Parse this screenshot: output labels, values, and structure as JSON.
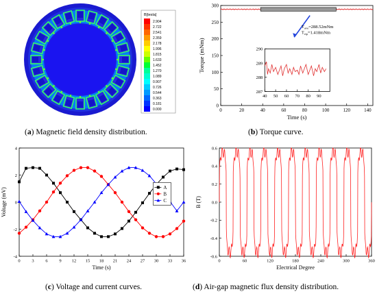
{
  "panels": {
    "a": {
      "letter": "a",
      "caption": "Magnetic field density distribution.",
      "colorbar": {
        "title": "B[tesla]",
        "values": [
          "2.904",
          "2.722",
          "2.541",
          "2.359",
          "2.178",
          "1.996",
          "1.815",
          "1.633",
          "1.452",
          "1.270",
          "1.089",
          "0.907",
          "0.726",
          "0.544",
          "0.363",
          "0.181",
          "0.000"
        ],
        "colors": [
          "#ff0000",
          "#ff3300",
          "#ff6600",
          "#ff9900",
          "#ffcc00",
          "#ffff00",
          "#ccff00",
          "#66ff00",
          "#00ff33",
          "#00ff99",
          "#00ffcc",
          "#00ffff",
          "#00ccff",
          "#0099ff",
          "#0066ff",
          "#0033ff",
          "#0000ff"
        ]
      }
    },
    "b": {
      "letter": "b",
      "caption": "Torque curve."
    },
    "c": {
      "letter": "c",
      "caption": "Voltage and current curves."
    },
    "d": {
      "letter": "d",
      "caption": "Air-gap magnetic flux density distribution."
    }
  },
  "chart_data": [
    {
      "id": "torque",
      "type": "line",
      "xlabel": "Time (s)",
      "ylabel": "Torque (mNm)",
      "xlim": [
        0,
        145
      ],
      "ylim": [
        0,
        300
      ],
      "xticks": [
        0,
        20,
        40,
        60,
        80,
        100,
        120,
        140
      ],
      "yticks": [
        0,
        50,
        100,
        150,
        200,
        250,
        300
      ],
      "color": "#e03030",
      "series": [
        {
          "x": [
            0,
            145
          ],
          "y": [
            288.52,
            288.52
          ]
        }
      ],
      "annotations": [
        "T",
        "ave",
        "=288.52mNm",
        "T",
        "rip",
        "=1.418mNm"
      ],
      "inset": {
        "xlim": [
          40,
          100
        ],
        "ylim": [
          287,
          290
        ],
        "xticks": [
          40,
          50,
          60,
          70,
          80,
          90
        ],
        "yticks": [
          287,
          288,
          289,
          290
        ],
        "x": [
          40,
          41.5,
          42.5,
          43.5,
          45,
          46.5,
          48,
          50,
          52,
          53.5,
          55,
          56.5,
          58,
          60,
          61.5,
          63,
          65,
          66.5,
          68,
          70,
          71.5,
          73,
          75,
          76.5,
          78,
          80,
          81.5,
          83,
          85,
          86.5,
          88,
          90,
          91.5,
          93,
          95,
          96.5
        ],
        "y": [
          288.8,
          289.1,
          288.2,
          288.6,
          288.3,
          288.9,
          288.4,
          288.7,
          288.2,
          288.5,
          288.8,
          288.1,
          288.6,
          288.9,
          288.3,
          288.6,
          288.2,
          288.7,
          288.4,
          288.5,
          288.2,
          288.8,
          288.3,
          288.6,
          288.9,
          288.2,
          288.5,
          288.8,
          288.1,
          288.6,
          288.4,
          288.9,
          288.3,
          288.7,
          288.4,
          288.6
        ]
      }
    },
    {
      "id": "voltage",
      "type": "line",
      "xlabel": "Time (s)",
      "ylabel": "Voltage (mV)",
      "xlim": [
        0,
        36
      ],
      "ylim": [
        -4,
        4
      ],
      "xticks": [
        0,
        3,
        6,
        9,
        12,
        15,
        18,
        21,
        24,
        27,
        30,
        33,
        36
      ],
      "yticks": [
        -4,
        -2,
        0,
        2,
        4
      ],
      "legend": "right",
      "x": [
        0,
        1.5,
        3,
        4.5,
        6,
        7.5,
        9,
        10.5,
        12,
        13.5,
        15,
        16.5,
        18,
        19.5,
        21,
        22.5,
        24,
        25.5,
        27,
        28.5,
        30,
        31.5,
        33,
        34.5,
        36
      ],
      "series": [
        {
          "name": "A",
          "color": "#000000",
          "marker": "square",
          "values": [
            1.5,
            2.5,
            2.55,
            2.5,
            2.0,
            1.4,
            0.7,
            0.0,
            -0.7,
            -1.3,
            -1.9,
            -2.3,
            -2.55,
            -2.55,
            -2.35,
            -1.95,
            -1.4,
            -0.75,
            -0.05,
            0.65,
            1.3,
            1.85,
            2.3,
            2.45,
            2.4
          ]
        },
        {
          "name": "B",
          "color": "#ff0000",
          "marker": "circle",
          "values": [
            -2.3,
            -1.85,
            -1.3,
            -0.65,
            0.0,
            0.75,
            1.4,
            1.95,
            2.35,
            2.55,
            2.55,
            2.3,
            1.9,
            1.3,
            0.7,
            0.0,
            -0.7,
            -1.3,
            -1.9,
            -2.3,
            -2.55,
            -2.55,
            -2.35,
            -1.95,
            -1.4
          ]
        },
        {
          "name": "C",
          "color": "#0000ff",
          "marker": "triangle",
          "values": [
            0.05,
            -0.7,
            -1.35,
            -1.9,
            -2.35,
            -2.55,
            -2.55,
            -2.3,
            -1.85,
            -1.3,
            -0.65,
            0.0,
            0.7,
            1.3,
            1.85,
            2.3,
            2.55,
            2.55,
            2.35,
            1.95,
            1.35,
            0.7,
            0.05,
            -0.65,
            0.0
          ]
        }
      ]
    },
    {
      "id": "flux",
      "type": "line",
      "xlabel": "Electrical Degree",
      "ylabel": "B (T)",
      "xlim": [
        0,
        360
      ],
      "ylim": [
        -0.6,
        0.6
      ],
      "xticks": [
        0,
        60,
        120,
        180,
        240,
        300,
        360
      ],
      "yticks": [
        -0.6,
        -0.4,
        -0.2,
        0.0,
        0.2,
        0.4,
        0.6
      ],
      "color": "#ff2020",
      "pole_pairs": 11,
      "amplitude": 0.56
    }
  ]
}
